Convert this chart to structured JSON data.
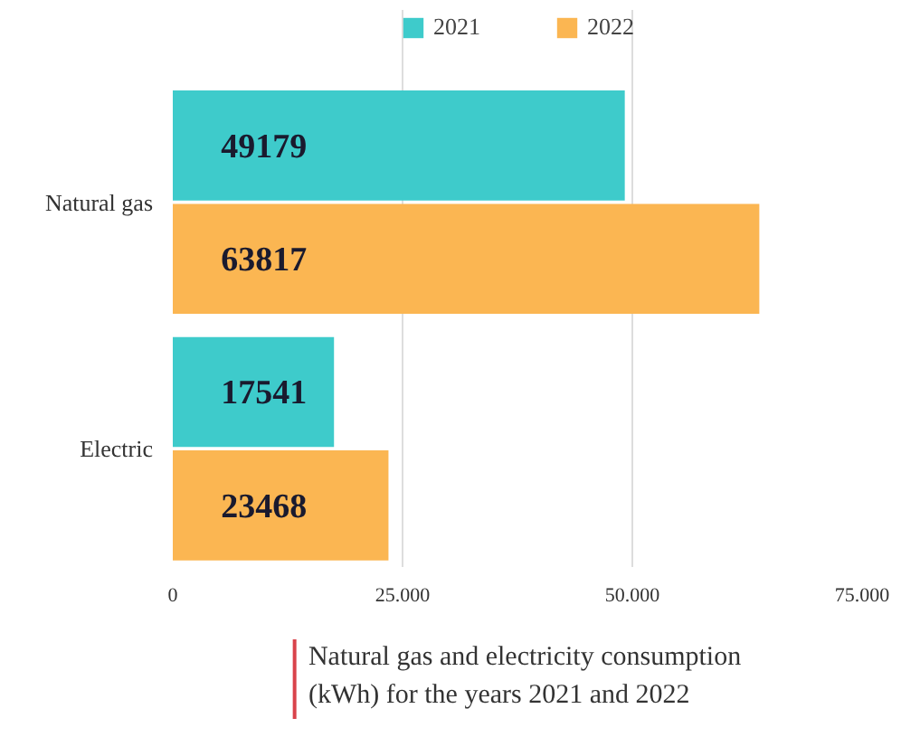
{
  "chart_data": {
    "type": "bar",
    "orientation": "horizontal",
    "categories": [
      "Natural gas",
      "Electric"
    ],
    "series": [
      {
        "name": "2021",
        "color": "#3ecbcb",
        "values": [
          49179,
          17541
        ]
      },
      {
        "name": "2022",
        "color": "#fbb652",
        "values": [
          63817,
          23468
        ]
      }
    ],
    "xlim": [
      0,
      75000
    ],
    "xticks": [
      0,
      {
        "value": 25000,
        "label": "25.000"
      },
      {
        "value": 50000,
        "label": "50.000"
      },
      {
        "value": 75000,
        "label": "75.000"
      }
    ],
    "grid": "x",
    "legend": "top",
    "data_labels": true,
    "annotations": [
      "Natural gas and electricity consumption (kWh) for the years 2021 and 2022"
    ]
  }
}
